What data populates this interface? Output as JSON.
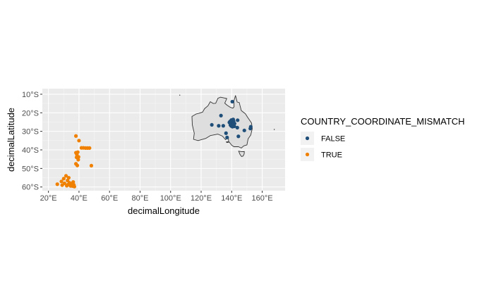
{
  "chart_data": {
    "type": "scatter",
    "title": "",
    "xlabel": "decimalLongitude",
    "ylabel": "decimalLatitude",
    "xlim": [
      16,
      175
    ],
    "ylim": [
      -62,
      -7
    ],
    "x_ticks": [
      20,
      40,
      60,
      80,
      100,
      120,
      140,
      160
    ],
    "x_tick_labels": [
      "20°E",
      "40°E",
      "60°E",
      "80°E",
      "100°E",
      "120°E",
      "140°E",
      "160°E"
    ],
    "y_ticks": [
      -10,
      -20,
      -30,
      -40,
      -50,
      -60
    ],
    "y_tick_labels": [
      "10°S",
      "20°S",
      "30°S",
      "40°S",
      "50°S",
      "60°S"
    ],
    "grid": true,
    "panel_background": "#ebebeb",
    "legend": {
      "title": "COUNTRY_COORDINATE_MISMATCH",
      "placement": "right"
    },
    "basemap": {
      "name": "Australia",
      "fill": "#dedede",
      "stroke": "#333333",
      "outline": [
        [
          114,
          -22
        ],
        [
          114.2,
          -26.5
        ],
        [
          115.5,
          -31
        ],
        [
          115,
          -34.3
        ],
        [
          118,
          -35
        ],
        [
          123,
          -33.8
        ],
        [
          126,
          -32.3
        ],
        [
          131,
          -31.5
        ],
        [
          134,
          -32.6
        ],
        [
          136,
          -34.5
        ],
        [
          137.8,
          -33
        ],
        [
          138,
          -35.3
        ],
        [
          140,
          -37.5
        ],
        [
          141.5,
          -38.3
        ],
        [
          144.5,
          -38.3
        ],
        [
          146.3,
          -39
        ],
        [
          148,
          -37.8
        ],
        [
          150,
          -37.3
        ],
        [
          150.8,
          -34
        ],
        [
          152.5,
          -32
        ],
        [
          153.5,
          -28.5
        ],
        [
          153,
          -25.5
        ],
        [
          150.5,
          -22.5
        ],
        [
          149,
          -20.5
        ],
        [
          146.3,
          -18.8
        ],
        [
          145.4,
          -16
        ],
        [
          145,
          -14.5
        ],
        [
          143.6,
          -14.2
        ],
        [
          142.5,
          -10.7
        ],
        [
          141.5,
          -13.5
        ],
        [
          141.6,
          -16.8
        ],
        [
          140.8,
          -17.5
        ],
        [
          139,
          -17
        ],
        [
          137,
          -15.9
        ],
        [
          135.5,
          -14.8
        ],
        [
          136.8,
          -12.3
        ],
        [
          135,
          -12
        ],
        [
          132.6,
          -11.6
        ],
        [
          131,
          -12.2
        ],
        [
          129.5,
          -14.9
        ],
        [
          128,
          -15
        ],
        [
          126,
          -14
        ],
        [
          124.5,
          -16.2
        ],
        [
          122.2,
          -17.8
        ],
        [
          121,
          -19.6
        ],
        [
          118.5,
          -20.3
        ],
        [
          116.8,
          -20.6
        ],
        [
          114,
          -22
        ]
      ],
      "islands": [
        [
          [
            144.6,
            -40.7
          ],
          [
            146.6,
            -41
          ],
          [
            148.3,
            -40.9
          ],
          [
            148.2,
            -42.2
          ],
          [
            147.5,
            -43.3
          ],
          [
            146.5,
            -43.6
          ],
          [
            145.4,
            -42.4
          ],
          [
            144.6,
            -40.7
          ]
        ],
        [
          [
            136.5,
            -35.7
          ],
          [
            137.6,
            -35.6
          ],
          [
            138,
            -35.9
          ],
          [
            136.8,
            -36
          ],
          [
            136.5,
            -35.7
          ]
        ]
      ]
    },
    "speck_markers": [
      [
        106,
        -10.5
      ],
      [
        167.9,
        -29
      ]
    ],
    "series": [
      {
        "name": "FALSE",
        "color": "#1f4e79",
        "points": [
          [
            140.4,
            -14
          ],
          [
            143.9,
            -24
          ],
          [
            133,
            -21.5
          ],
          [
            127,
            -26.5
          ],
          [
            131.5,
            -27
          ],
          [
            134.5,
            -27
          ],
          [
            136.3,
            -31
          ],
          [
            137,
            -33.3
          ],
          [
            144.4,
            -32.7
          ],
          [
            148.3,
            -29.5
          ],
          [
            143.7,
            -28
          ],
          [
            152.2,
            -28.5
          ],
          [
            152.5,
            -27.5
          ],
          [
            139.5,
            -25.5
          ],
          [
            140,
            -24.5
          ],
          [
            141.3,
            -24.6
          ],
          [
            140.8,
            -26.1
          ],
          [
            139.7,
            -27.1
          ],
          [
            141,
            -23.6
          ],
          [
            138.9,
            -24.7
          ],
          [
            140.5,
            -27.5
          ],
          [
            141.7,
            -27.3
          ],
          [
            139.2,
            -26.6
          ],
          [
            140.3,
            -25.9
          ],
          [
            138.5,
            -25.2
          ],
          [
            141.9,
            -25.8
          ],
          [
            139.8,
            -23.9
          ],
          [
            140.9,
            -25
          ],
          [
            140.2,
            -24.9
          ],
          [
            140.6,
            -26.6
          ]
        ]
      },
      {
        "name": "TRUE",
        "color": "#f08000",
        "points": [
          [
            38,
            -32.5
          ],
          [
            40,
            -35
          ],
          [
            38,
            -41.5
          ],
          [
            38.6,
            -42.5
          ],
          [
            39.7,
            -43.8
          ],
          [
            38.4,
            -44
          ],
          [
            38,
            -47.5
          ],
          [
            38.9,
            -48.4
          ],
          [
            41.6,
            -38.9
          ],
          [
            42.9,
            -38.9
          ],
          [
            44.3,
            -39
          ],
          [
            45.6,
            -39
          ],
          [
            46.9,
            -39
          ],
          [
            48.1,
            -48.5
          ],
          [
            39.2,
            -41.2
          ],
          [
            39.5,
            -45.3
          ],
          [
            25.8,
            -58.5
          ],
          [
            28.5,
            -57
          ],
          [
            29,
            -59
          ],
          [
            30,
            -55.5
          ],
          [
            30.5,
            -58
          ],
          [
            31.5,
            -54
          ],
          [
            32,
            -59.3
          ],
          [
            32.5,
            -56.5
          ],
          [
            33.3,
            -55
          ],
          [
            33.8,
            -57.7
          ],
          [
            34.5,
            -59.4
          ],
          [
            35.2,
            -58.3
          ],
          [
            35.8,
            -59.5
          ],
          [
            36.2,
            -57.3
          ],
          [
            36.6,
            -58.8
          ],
          [
            37,
            -59.8
          ],
          [
            34,
            -58.5
          ],
          [
            32.8,
            -58.7
          ]
        ]
      }
    ]
  }
}
